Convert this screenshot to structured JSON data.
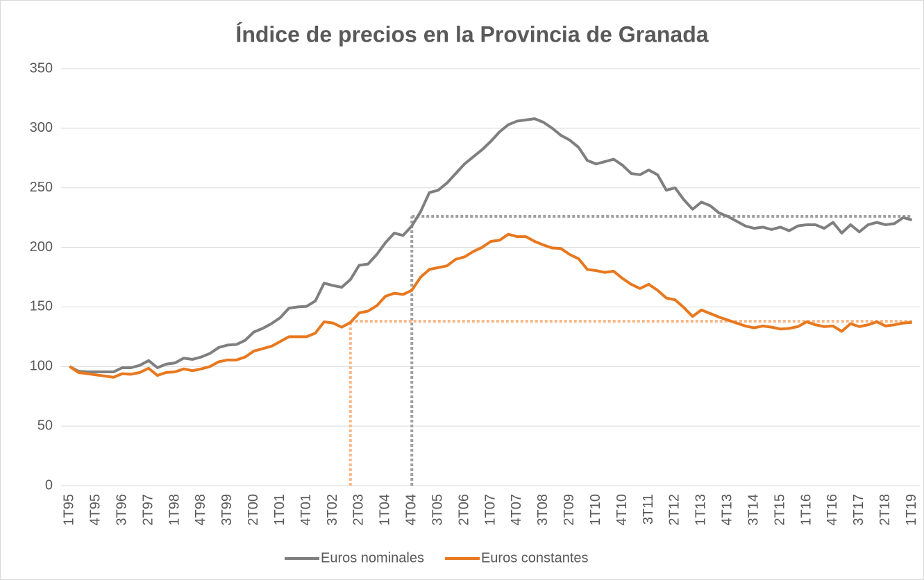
{
  "chart_data": {
    "type": "line",
    "title": "Índice de precios en la Provincia de Granada",
    "categories": [
      "1T95",
      null,
      null,
      "4T95",
      null,
      null,
      "3T96",
      null,
      null,
      "2T97",
      null,
      null,
      "1T98",
      null,
      null,
      "4T98",
      null,
      null,
      "3T99",
      null,
      null,
      "2T00",
      null,
      null,
      "1T01",
      null,
      null,
      "4T01",
      null,
      null,
      "3T02",
      null,
      null,
      "2T03",
      null,
      null,
      "1T04",
      null,
      null,
      "4T04",
      null,
      null,
      "3T05",
      null,
      null,
      "2T06",
      null,
      null,
      "1T07",
      null,
      null,
      "4T07",
      null,
      null,
      "3T08",
      null,
      null,
      "2T09",
      null,
      null,
      "1T10",
      null,
      null,
      "4T10",
      null,
      null,
      "3T11",
      null,
      null,
      "2T12",
      null,
      null,
      "1T13",
      null,
      null,
      "4T13",
      null,
      null,
      "3T14",
      null,
      null,
      "2T15",
      null,
      null,
      "1T16",
      null,
      null,
      "4T16",
      null,
      null,
      "3T17",
      null,
      null,
      "2T18",
      null,
      null,
      "1T19"
    ],
    "series": [
      {
        "name": "Euros nominales",
        "color": "#7f7f7f",
        "values": [
          100,
          96,
          95.5,
          95.5,
          95.5,
          95.5,
          99,
          99,
          101,
          105,
          99,
          102,
          103,
          107,
          106,
          108,
          111,
          116,
          118,
          118.5,
          122,
          129,
          132,
          136,
          141,
          149,
          150,
          150.5,
          155,
          170,
          168,
          166.5,
          173,
          185,
          186,
          194,
          204,
          212,
          210,
          218,
          230,
          246,
          248,
          254,
          262,
          270,
          276,
          282,
          289,
          297,
          303,
          306,
          307,
          308,
          305,
          300,
          294,
          290,
          284,
          273,
          270,
          272,
          274,
          269,
          262,
          261,
          265,
          261,
          248,
          250,
          240,
          232,
          238,
          235,
          229,
          226,
          222,
          218,
          216,
          217,
          215,
          217,
          214,
          218,
          219,
          219,
          216,
          221,
          212,
          219,
          213,
          219,
          221,
          219,
          220,
          225,
          223
        ]
      },
      {
        "name": "Euros constantes",
        "color": "#e8781f",
        "values": [
          100,
          95,
          94,
          93,
          92,
          91,
          94,
          93.5,
          95,
          98.5,
          92.5,
          95,
          95.5,
          98,
          96.5,
          98,
          100,
          104,
          105.5,
          105.5,
          108,
          113,
          115,
          117,
          121,
          125,
          125,
          125,
          128,
          137.5,
          136.5,
          133,
          137,
          145,
          146.5,
          151,
          159,
          161.5,
          160.5,
          164,
          175,
          181.5,
          183,
          184.5,
          190,
          192,
          196.5,
          200,
          205,
          206,
          211,
          209,
          209,
          205,
          202,
          199.5,
          199,
          194,
          190.5,
          181.5,
          180.5,
          179,
          180,
          174,
          169,
          165.5,
          169,
          164,
          157.5,
          156,
          149.5,
          142,
          147.5,
          144.5,
          141.5,
          139,
          136.5,
          134,
          132.5,
          134,
          133,
          131.5,
          132,
          133.5,
          137.5,
          135,
          133.5,
          134,
          129.5,
          136,
          133.5,
          135,
          137.5,
          134,
          135,
          136.5,
          137
        ]
      }
    ],
    "reference_lines": [
      {
        "x_index": 39,
        "y": 226,
        "color": "#a0a0a0"
      },
      {
        "x_index": 32,
        "y": 138,
        "color": "#f7b98a"
      }
    ],
    "ylim": [
      0,
      350
    ],
    "yticks": [
      0,
      50,
      100,
      150,
      200,
      250,
      300,
      350
    ],
    "grid": true,
    "legend": "bottom"
  }
}
